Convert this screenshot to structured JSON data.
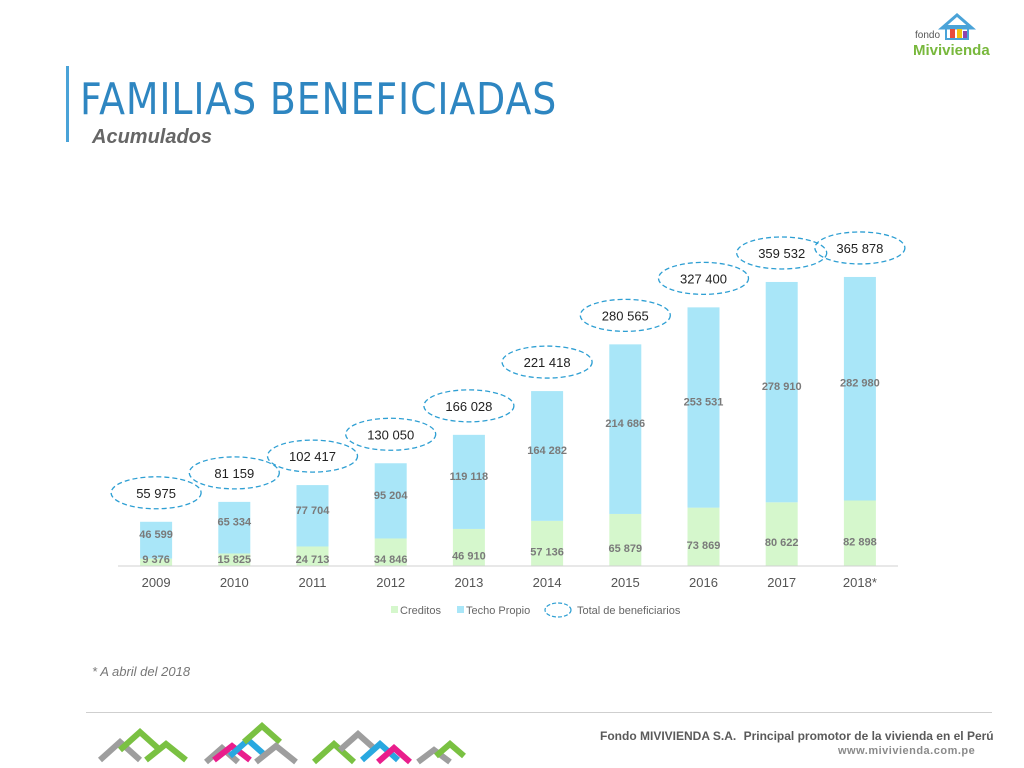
{
  "slide": {
    "title": "FAMILIAS BENEFICIADAS",
    "subtitle": "Acumulados",
    "footnote": "* A abril del 2018",
    "logo_small": "fondo",
    "logo_big": "Mivivienda",
    "footer_company": "Fondo MIVIVIENDA S.A.",
    "footer_tagline": "Principal promotor de la vivienda en el Perú",
    "footer_url": "www.mivivienda.com.pe"
  },
  "chart_data": {
    "type": "bar",
    "stacked": true,
    "categories": [
      "2009",
      "2010",
      "2011",
      "2012",
      "2013",
      "2014",
      "2015",
      "2016",
      "2017",
      "2018*"
    ],
    "series": [
      {
        "name": "Creditos",
        "color": "#d5f7cc",
        "values": [
          9376,
          15825,
          24713,
          34846,
          46910,
          57136,
          65879,
          73869,
          80622,
          82898
        ],
        "labels": [
          "9 376",
          "15 825",
          "24 713",
          "34 846",
          "46 910",
          "57 136",
          "65 879",
          "73 869",
          "80 622",
          "82 898"
        ]
      },
      {
        "name": "Techo Propio",
        "color": "#a9e6f8",
        "values": [
          46599,
          65334,
          77704,
          95204,
          119118,
          164282,
          214686,
          253531,
          278910,
          282980
        ],
        "labels": [
          "46 599",
          "65 334",
          "77 704",
          "95 204",
          "119 118",
          "164 282",
          "214 686",
          "253 531",
          "278 910",
          "282 980"
        ]
      }
    ],
    "totals": {
      "name": "Total de beneficiarios",
      "values": [
        55975,
        81159,
        102417,
        130050,
        166028,
        221418,
        280565,
        327400,
        359532,
        365878
      ],
      "labels": [
        "55 975",
        "81 159",
        "102 417",
        "130 050",
        "166 028",
        "221 418",
        "280 565",
        "327 400",
        "359 532",
        "365 878"
      ]
    },
    "ylim": [
      0,
      400000
    ],
    "legend_position": "bottom",
    "grid": false
  }
}
